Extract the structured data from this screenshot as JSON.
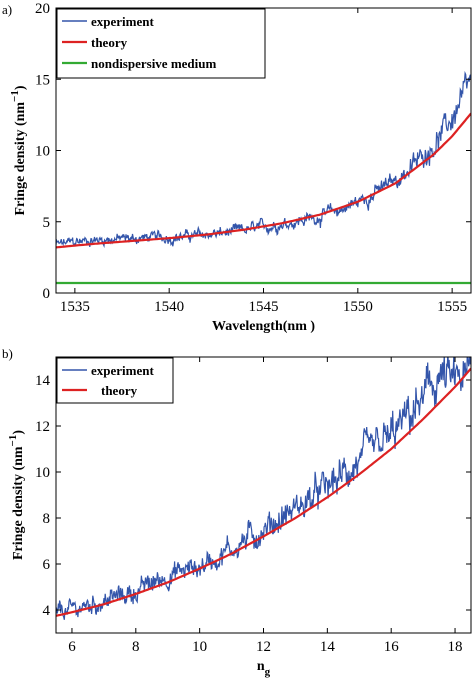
{
  "chart_data": [
    {
      "panel_label": "a)",
      "type": "line",
      "xlabel": "Wavelength(nm )",
      "ylabel": "Fringe density (nm",
      "ylabel_superscript": "−1",
      "ylabel_close": ")",
      "xlim": [
        1534,
        1556
      ],
      "ylim": [
        0,
        20
      ],
      "xticks": [
        1535,
        1540,
        1545,
        1550,
        1555
      ],
      "yticks": [
        0,
        5,
        10,
        15,
        20
      ],
      "legend_position": "top-left",
      "series": [
        {
          "name": "experiment",
          "color": "#3355aa",
          "noisy": true,
          "x": [
            1534,
            1535,
            1536,
            1537,
            1538,
            1539,
            1540,
            1541,
            1542,
            1543,
            1544,
            1545,
            1546,
            1547,
            1548,
            1549,
            1550,
            1551,
            1552,
            1553,
            1554,
            1555,
            1555.5,
            1556
          ],
          "y": [
            3.4,
            3.6,
            3.7,
            3.8,
            3.8,
            3.9,
            3.9,
            4.0,
            4.1,
            4.2,
            4.4,
            4.6,
            4.9,
            5.1,
            5.4,
            5.8,
            6.4,
            7.1,
            7.9,
            9.0,
            10.4,
            12.2,
            13.6,
            14.6
          ]
        },
        {
          "name": "theory",
          "color": "#dd2222",
          "noisy": false,
          "x": [
            1534,
            1536,
            1538,
            1540,
            1542,
            1544,
            1546,
            1548,
            1550,
            1552,
            1554,
            1555,
            1556
          ],
          "y": [
            3.2,
            3.45,
            3.65,
            3.85,
            4.1,
            4.45,
            4.9,
            5.5,
            6.4,
            7.7,
            9.7,
            11.0,
            12.6
          ]
        },
        {
          "name": "nondispersive medium",
          "color": "#33aa33",
          "noisy": false,
          "x": [
            1534,
            1556
          ],
          "y": [
            0.7,
            0.7
          ]
        }
      ]
    },
    {
      "panel_label": "b)",
      "type": "line",
      "xlabel": "n",
      "xlabel_subscript": "g",
      "ylabel": "Fringe density (nm",
      "ylabel_superscript": "−1",
      "ylabel_close": ")",
      "xlim": [
        5.5,
        18.5
      ],
      "ylim": [
        3,
        15
      ],
      "xticks": [
        6,
        8,
        10,
        12,
        14,
        16,
        18
      ],
      "yticks": [
        4,
        6,
        8,
        10,
        12,
        14
      ],
      "legend_position": "top-left",
      "series": [
        {
          "name": "experiment",
          "color": "#3355aa",
          "noisy": true,
          "x": [
            5.5,
            6,
            7,
            8,
            9,
            10,
            11,
            12,
            13,
            14,
            15,
            16,
            17,
            17.5,
            18,
            18.5
          ],
          "y": [
            3.9,
            4.0,
            4.4,
            4.8,
            5.5,
            5.9,
            6.7,
            7.5,
            8.4,
            9.3,
            10.4,
            11.5,
            13.1,
            14.2,
            13.8,
            14.3
          ]
        },
        {
          "name": "theory",
          "color": "#dd2222",
          "noisy": false,
          "x": [
            5.5,
            6,
            7,
            8,
            9,
            10,
            11,
            12,
            13,
            14,
            15,
            16,
            17,
            18,
            18.5
          ],
          "y": [
            3.75,
            3.9,
            4.25,
            4.7,
            5.2,
            5.8,
            6.45,
            7.2,
            8.0,
            8.9,
            9.9,
            11.0,
            12.3,
            13.7,
            14.5
          ]
        }
      ]
    }
  ]
}
